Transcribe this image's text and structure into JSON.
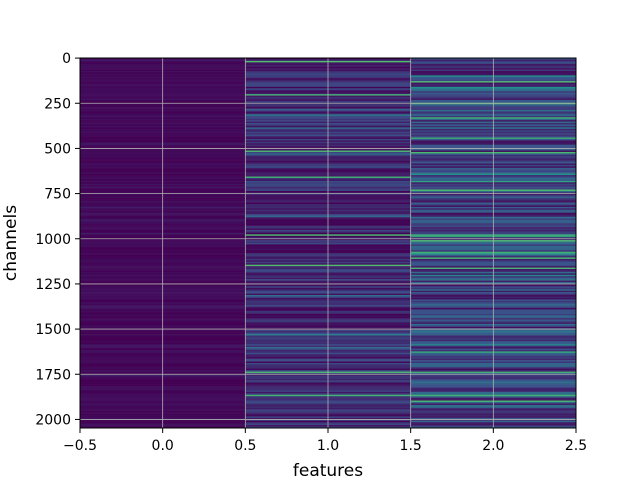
{
  "chart_data": {
    "type": "heatmap",
    "title": "",
    "xlabel": "features",
    "ylabel": "channels",
    "x_categories": [
      0,
      1,
      2
    ],
    "n_rows": 2048,
    "xlim": [
      -0.5,
      2.5
    ],
    "ylim": [
      2047.5,
      -0.5
    ],
    "x_ticks": [
      -0.5,
      0.0,
      0.5,
      1.0,
      1.5,
      2.0,
      2.5
    ],
    "x_tick_labels": [
      "−0.5",
      "0.0",
      "0.5",
      "1.0",
      "1.5",
      "2.0",
      "2.5"
    ],
    "y_ticks": [
      0,
      250,
      500,
      750,
      1000,
      1250,
      1500,
      1750,
      2000
    ],
    "y_tick_labels": [
      "0",
      "250",
      "500",
      "750",
      "1000",
      "1250",
      "1500",
      "1750",
      "2000"
    ],
    "y_inverted": true,
    "grid": true,
    "colormap": "viridis",
    "value_range": [
      0,
      1
    ],
    "columns": [
      {
        "feature": 0,
        "mean_value": 0.02,
        "spread": 0.03,
        "bright_rows": []
      },
      {
        "feature": 1,
        "mean_value": 0.12,
        "spread": 0.12,
        "bright_rows": [
          20,
          200,
          515,
          660,
          980,
          1150,
          1740,
          1870
        ]
      },
      {
        "feature": 2,
        "mean_value": 0.2,
        "spread": 0.17,
        "bright_rows": [
          130,
          250,
          330,
          520,
          730,
          980,
          1010,
          1110,
          1160,
          1740,
          1870,
          1900
        ]
      }
    ],
    "colors": {
      "low": "#440154",
      "mid": "#31688e",
      "high": "#35b779",
      "grid": "#b0b0b0"
    }
  }
}
